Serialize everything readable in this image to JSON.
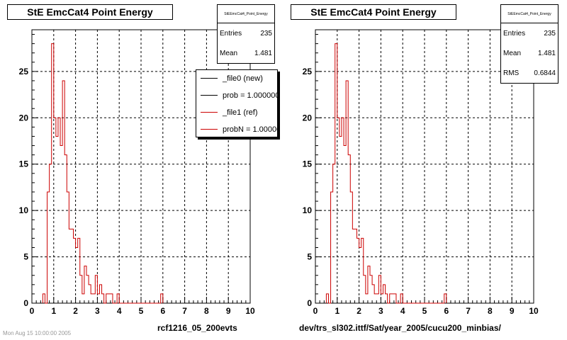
{
  "footer": "Mon Aug 15 10:00:00 2005",
  "panels": [
    {
      "id": "left",
      "title": "StE EmcCat4 Point Energy",
      "xcaption": "rcf1216_05_200evts",
      "stats": {
        "name": "StEEmcCat4_Point_Energy",
        "rows": [
          {
            "label": "Entries",
            "value": "235"
          },
          {
            "label": "Mean",
            "value": "1.481"
          }
        ]
      },
      "legend": [
        {
          "label": "_file0 (new)",
          "color": "#000000"
        },
        {
          "label": "prob = 1.000000",
          "color": "#000000"
        },
        {
          "label": "_file1 (ref)",
          "color": "#cc0000"
        },
        {
          "label": "probN = 1.000000",
          "color": "#cc0000"
        }
      ]
    },
    {
      "id": "right",
      "title": "StE EmcCat4 Point Energy",
      "xcaption": "dev/trs_sl302.ittf/Sat/year_2005/cucu200_minbias/",
      "stats": {
        "name": "StEEmcCat4_Point_Energy",
        "rows": [
          {
            "label": "Entries",
            "value": "235"
          },
          {
            "label": "Mean",
            "value": "1.481"
          },
          {
            "label": "RMS",
            "value": "0.6844"
          }
        ]
      },
      "legend": []
    }
  ],
  "chart_data": [
    {
      "type": "histogram",
      "title": "StE EmcCat4 Point Energy",
      "xlabel": "rcf1216_05_200evts",
      "ylabel": "",
      "xlim": [
        0,
        10
      ],
      "ylim": [
        0,
        29.5
      ],
      "xticks": [
        0,
        1,
        2,
        3,
        4,
        5,
        6,
        7,
        8,
        9,
        10
      ],
      "yticks": [
        0,
        5,
        10,
        15,
        20,
        25
      ],
      "grid": true,
      "bin_width": 0.1,
      "series": [
        {
          "name": "_file1 (ref)",
          "color": "#cc0000",
          "bins": [
            [
              0.5,
              1
            ],
            [
              0.6,
              0
            ],
            [
              0.7,
              12
            ],
            [
              0.8,
              15
            ],
            [
              0.9,
              28
            ],
            [
              1.0,
              20
            ],
            [
              1.1,
              18
            ],
            [
              1.2,
              20
            ],
            [
              1.3,
              17
            ],
            [
              1.4,
              24
            ],
            [
              1.5,
              16
            ],
            [
              1.6,
              12
            ],
            [
              1.7,
              8
            ],
            [
              1.8,
              8
            ],
            [
              1.9,
              7
            ],
            [
              2.0,
              6
            ],
            [
              2.1,
              7
            ],
            [
              2.2,
              3
            ],
            [
              2.3,
              1
            ],
            [
              2.4,
              4
            ],
            [
              2.5,
              3
            ],
            [
              2.6,
              2
            ],
            [
              2.7,
              1
            ],
            [
              2.8,
              1
            ],
            [
              2.9,
              3
            ],
            [
              3.0,
              1
            ],
            [
              3.1,
              2
            ],
            [
              3.2,
              1
            ],
            [
              3.3,
              0
            ],
            [
              3.4,
              1
            ],
            [
              3.5,
              1
            ],
            [
              3.6,
              1
            ],
            [
              3.7,
              0
            ],
            [
              3.8,
              0
            ],
            [
              3.9,
              1
            ],
            [
              5.9,
              1
            ]
          ]
        }
      ]
    },
    {
      "type": "histogram",
      "title": "StE EmcCat4 Point Energy",
      "xlabel": "dev/trs_sl302.ittf/Sat/year_2005/cucu200_minbias/",
      "ylabel": "",
      "xlim": [
        0,
        10
      ],
      "ylim": [
        0,
        29.5
      ],
      "xticks": [
        0,
        1,
        2,
        3,
        4,
        5,
        6,
        7,
        8,
        9,
        10
      ],
      "yticks": [
        0,
        5,
        10,
        15,
        20,
        25
      ],
      "grid": true,
      "bin_width": 0.1,
      "series": [
        {
          "name": "",
          "color": "#cc0000",
          "bins": [
            [
              0.5,
              1
            ],
            [
              0.6,
              0
            ],
            [
              0.7,
              12
            ],
            [
              0.8,
              15
            ],
            [
              0.9,
              28
            ],
            [
              1.0,
              20
            ],
            [
              1.1,
              18
            ],
            [
              1.2,
              20
            ],
            [
              1.3,
              17
            ],
            [
              1.4,
              24
            ],
            [
              1.5,
              16
            ],
            [
              1.6,
              12
            ],
            [
              1.7,
              8
            ],
            [
              1.8,
              8
            ],
            [
              1.9,
              7
            ],
            [
              2.0,
              6
            ],
            [
              2.1,
              7
            ],
            [
              2.2,
              3
            ],
            [
              2.3,
              1
            ],
            [
              2.4,
              4
            ],
            [
              2.5,
              3
            ],
            [
              2.6,
              2
            ],
            [
              2.7,
              1
            ],
            [
              2.8,
              1
            ],
            [
              2.9,
              3
            ],
            [
              3.0,
              1
            ],
            [
              3.1,
              2
            ],
            [
              3.2,
              1
            ],
            [
              3.3,
              0
            ],
            [
              3.4,
              1
            ],
            [
              3.5,
              1
            ],
            [
              3.6,
              1
            ],
            [
              3.7,
              0
            ],
            [
              3.8,
              0
            ],
            [
              3.9,
              1
            ],
            [
              5.9,
              1
            ]
          ]
        }
      ]
    }
  ]
}
